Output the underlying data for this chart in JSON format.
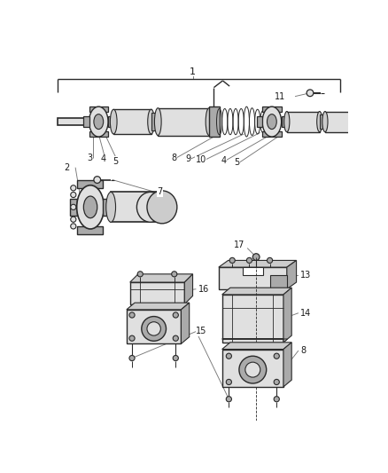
{
  "bg_color": "#ffffff",
  "line_color": "#2a2a2a",
  "gray_dark": "#888888",
  "gray_mid": "#aaaaaa",
  "gray_light": "#cccccc",
  "gray_fill": "#e0e0e0",
  "label_color": "#1a1a1a",
  "leader_color": "#777777",
  "fig_width": 4.38,
  "fig_height": 5.33,
  "dpi": 100
}
